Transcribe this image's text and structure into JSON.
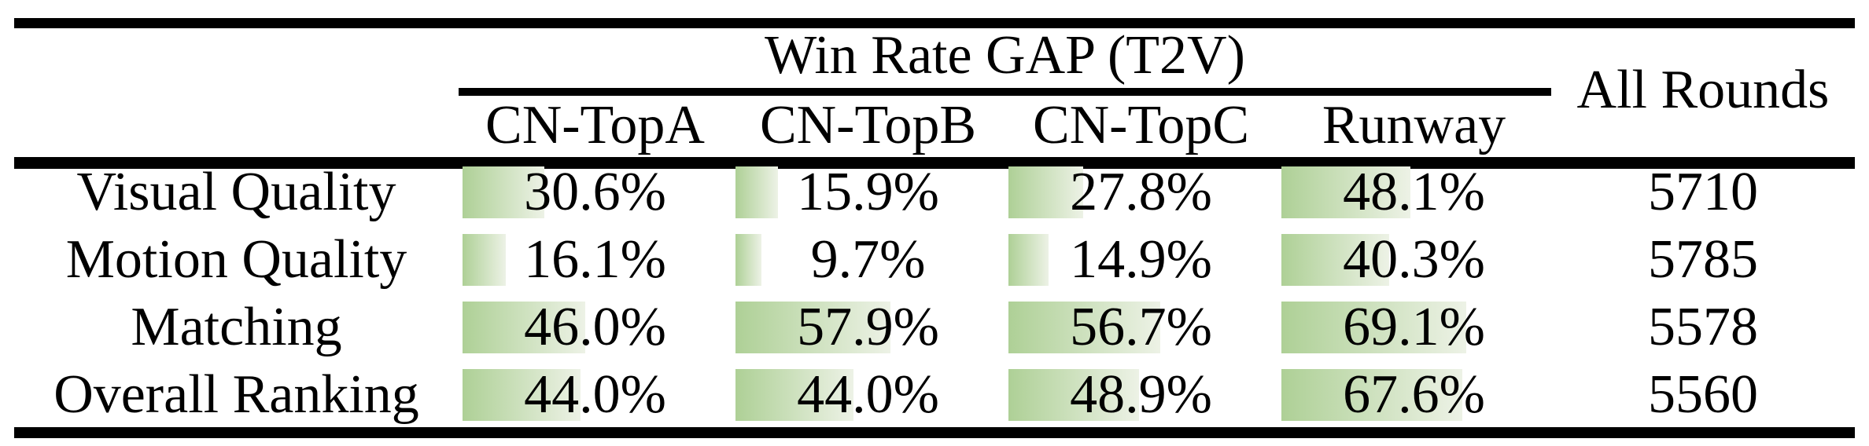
{
  "table": {
    "title": "Win Rate GAP (T2V)",
    "all_rounds_header": "All Rounds",
    "columns": [
      "CN-TopA",
      "CN-TopB",
      "CN-TopC",
      "Runway"
    ],
    "rows": [
      {
        "label": "Visual Quality",
        "cells": [
          {
            "text": "30.6%",
            "pct": 30.6
          },
          {
            "text": "15.9%",
            "pct": 15.9
          },
          {
            "text": "27.8%",
            "pct": 27.8
          },
          {
            "text": "48.1%",
            "pct": 48.1
          }
        ],
        "all_rounds": "5710"
      },
      {
        "label": "Motion Quality",
        "cells": [
          {
            "text": "16.1%",
            "pct": 16.1
          },
          {
            "text": "9.7%",
            "pct": 9.7
          },
          {
            "text": "14.9%",
            "pct": 14.9
          },
          {
            "text": "40.3%",
            "pct": 40.3
          }
        ],
        "all_rounds": "5785"
      },
      {
        "label": "Matching",
        "cells": [
          {
            "text": "46.0%",
            "pct": 46.0
          },
          {
            "text": "57.9%",
            "pct": 57.9
          },
          {
            "text": "56.7%",
            "pct": 56.7
          },
          {
            "text": "69.1%",
            "pct": 69.1
          }
        ],
        "all_rounds": "5578"
      },
      {
        "label": "Overall Ranking",
        "cells": [
          {
            "text": "44.0%",
            "pct": 44.0
          },
          {
            "text": "44.0%",
            "pct": 44.0
          },
          {
            "text": "48.9%",
            "pct": 48.9
          },
          {
            "text": "67.6%",
            "pct": 67.6
          }
        ],
        "all_rounds": "5560"
      }
    ],
    "colors": {
      "bar_gradient_start": "#aed096",
      "bar_gradient_end": "#edf2e6",
      "rule": "#000000",
      "text": "#000000",
      "background": "#ffffff"
    }
  }
}
